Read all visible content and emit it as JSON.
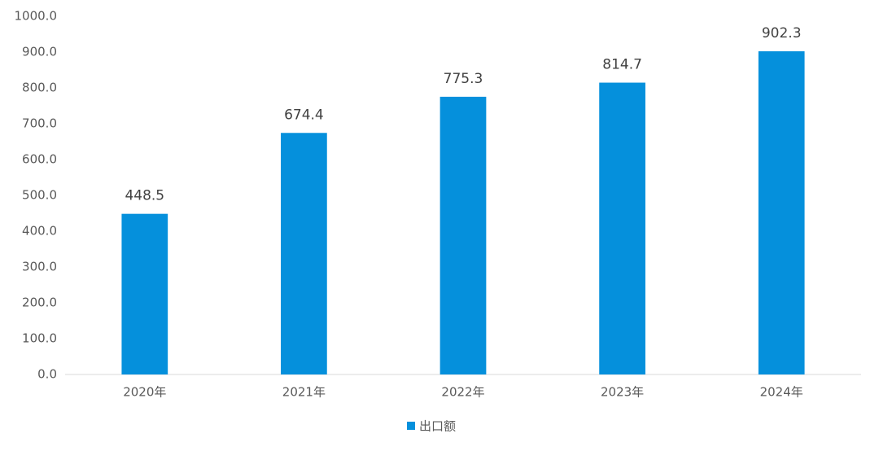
{
  "chart_data": {
    "type": "bar",
    "categories": [
      "2020年",
      "2021年",
      "2022年",
      "2023年",
      "2024年"
    ],
    "series": [
      {
        "name": "出口额",
        "color": "#0590dc",
        "values": [
          448.5,
          674.4,
          775.3,
          814.7,
          902.3
        ]
      }
    ],
    "ylim": [
      0,
      1000
    ],
    "yticks": [
      {
        "value": 0,
        "label": "0.0"
      },
      {
        "value": 100,
        "label": "100.0"
      },
      {
        "value": 200,
        "label": "200.0"
      },
      {
        "value": 300,
        "label": "300.0"
      },
      {
        "value": 400,
        "label": "400.0"
      },
      {
        "value": 500,
        "label": "500.0"
      },
      {
        "value": 600,
        "label": "600.0"
      },
      {
        "value": 700,
        "label": "700.0"
      },
      {
        "value": 800,
        "label": "800.0"
      },
      {
        "value": 900,
        "label": "900.0"
      },
      {
        "value": 1000,
        "label": "1000.0"
      }
    ],
    "grid": false,
    "legend": "bottom"
  }
}
